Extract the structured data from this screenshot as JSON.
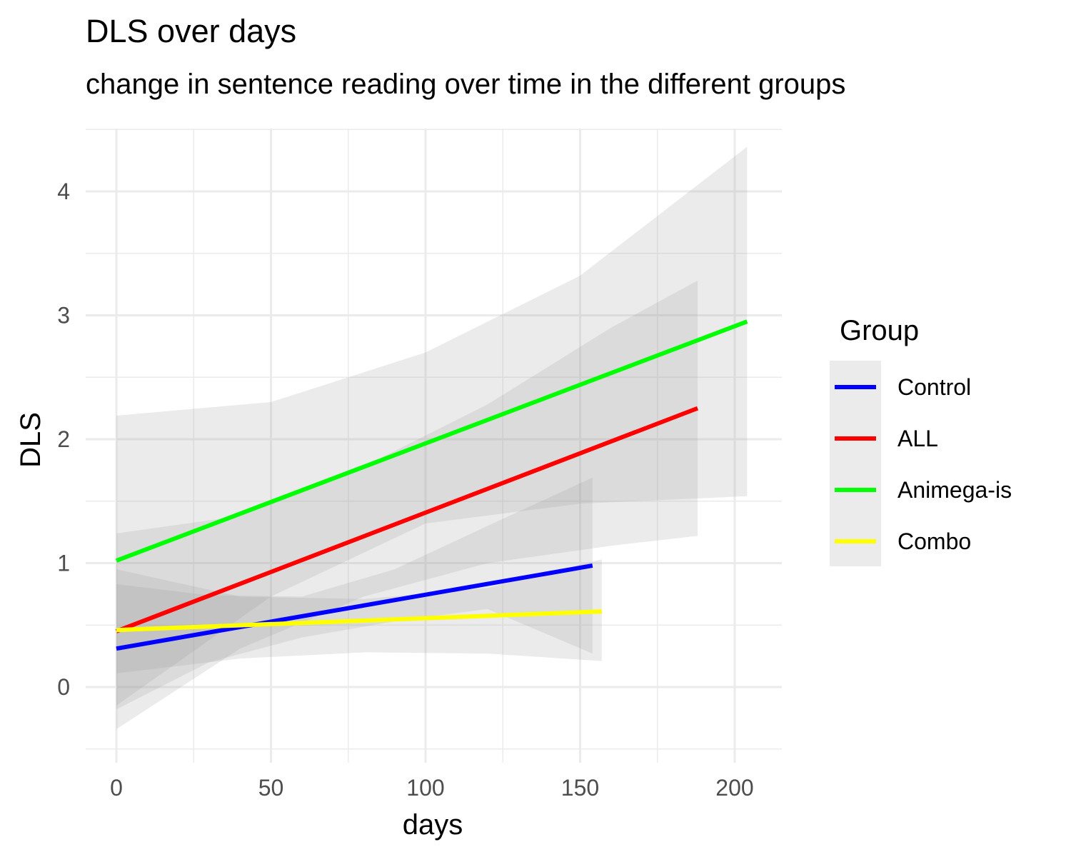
{
  "chart_data": {
    "type": "line",
    "title": "DLS over days",
    "subtitle": "change in sentence reading over time in the different groups",
    "xlabel": "days",
    "ylabel": "DLS",
    "xlim": [
      -10,
      215
    ],
    "ylim": [
      -0.5,
      4.5
    ],
    "x_ticks": [
      0,
      50,
      100,
      150,
      200
    ],
    "y_ticks": [
      0,
      1,
      2,
      3,
      4
    ],
    "grid": true,
    "legend": {
      "title": "Group",
      "position": "right"
    },
    "series": [
      {
        "name": "Control",
        "color": "#0000ff",
        "x": [
          0,
          154
        ],
        "y": [
          0.31,
          0.98
        ],
        "ribbon": {
          "x": [
            0,
            30,
            60,
            90,
            120,
            154
          ],
          "lower": [
            -0.18,
            0.2,
            0.4,
            0.53,
            0.63,
            0.27
          ],
          "upper": [
            0.83,
            0.74,
            0.73,
            0.95,
            1.3,
            1.69
          ]
        }
      },
      {
        "name": "ALL",
        "color": "#ff0000",
        "x": [
          0,
          188
        ],
        "y": [
          0.45,
          2.25
        ],
        "ribbon": {
          "x": [
            0,
            40,
            80,
            120,
            160,
            188
          ],
          "lower": [
            -0.34,
            0.31,
            0.73,
            1.0,
            1.14,
            1.22
          ],
          "upper": [
            1.24,
            1.38,
            1.78,
            2.28,
            2.9,
            3.28
          ]
        }
      },
      {
        "name": "Animega-is",
        "color": "#00ff00",
        "x": [
          0,
          204
        ],
        "y": [
          1.02,
          2.95
        ],
        "ribbon": {
          "x": [
            0,
            50,
            100,
            150,
            204
          ],
          "lower": [
            -0.15,
            0.73,
            1.32,
            1.48,
            1.54
          ],
          "upper": [
            2.19,
            2.3,
            2.7,
            3.32,
            4.36
          ]
        }
      },
      {
        "name": "Combo",
        "color": "#ffff00",
        "x": [
          0,
          157
        ],
        "y": [
          0.46,
          0.61
        ],
        "ribbon": {
          "x": [
            0,
            40,
            80,
            120,
            157
          ],
          "lower": [
            0.11,
            0.23,
            0.28,
            0.27,
            0.21
          ],
          "upper": [
            0.95,
            0.73,
            0.71,
            0.8,
            1.03
          ]
        }
      }
    ]
  }
}
